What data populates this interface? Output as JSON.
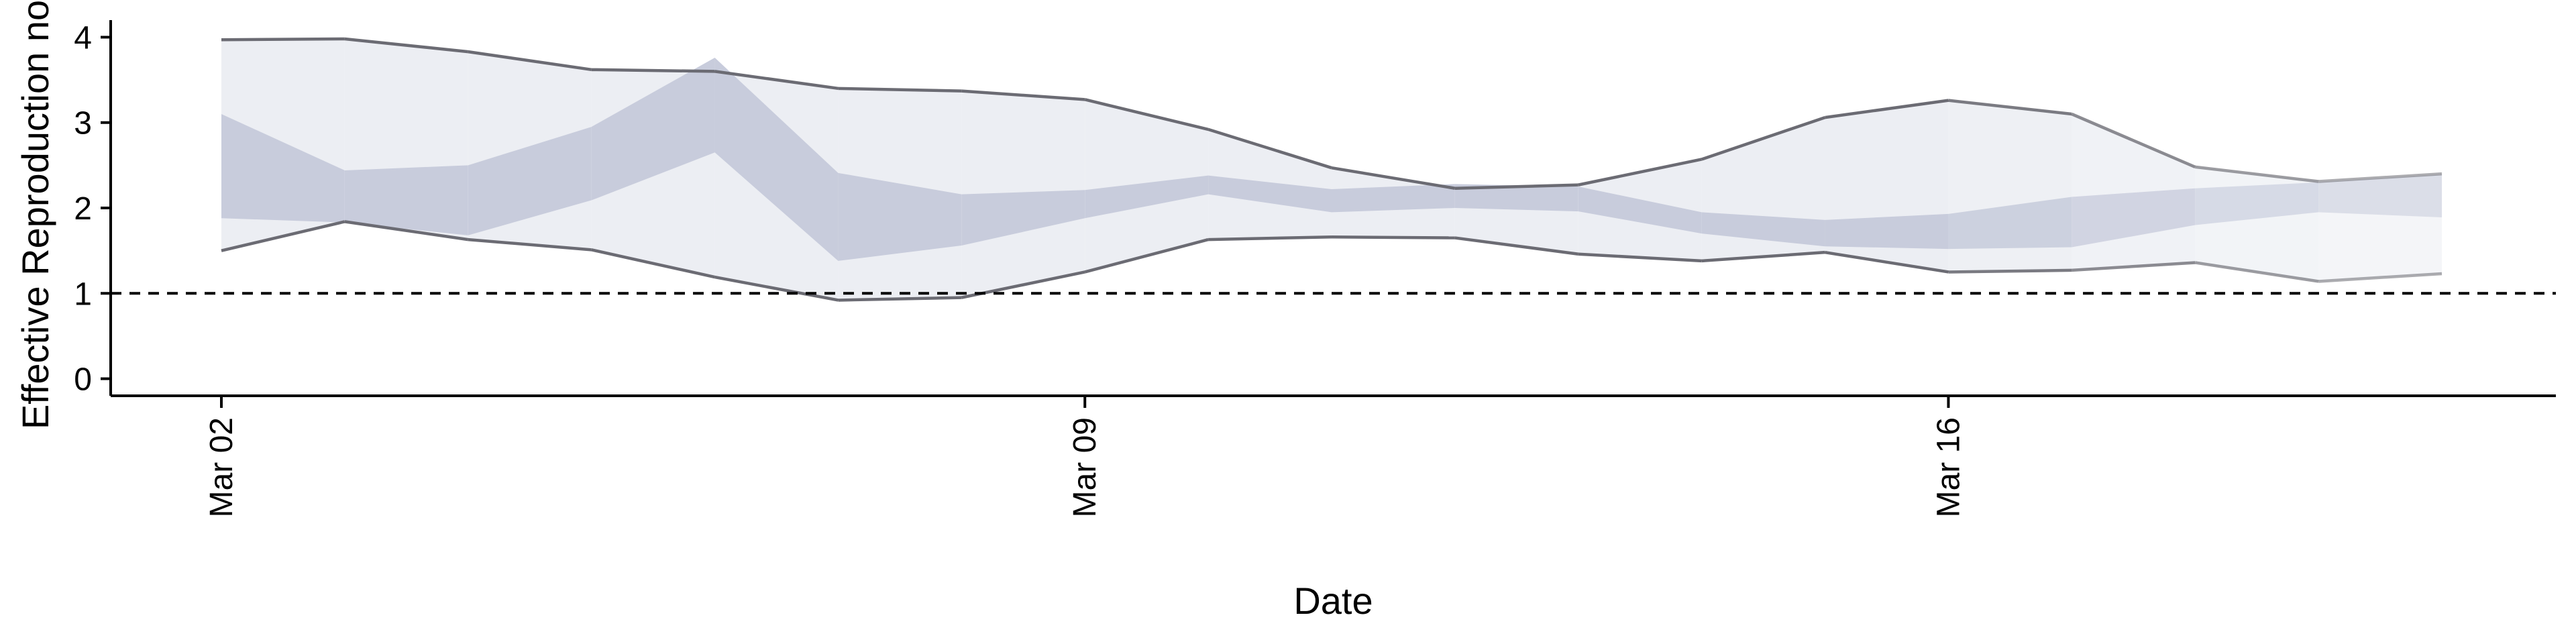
{
  "chart_data": {
    "type": "area",
    "xlabel": "Date",
    "ylabel": "Effective Reproduction no",
    "x": [
      "Mar 02",
      "Mar 03",
      "Mar 04",
      "Mar 05",
      "Mar 06",
      "Mar 07",
      "Mar 08",
      "Mar 09",
      "Mar 10",
      "Mar 11",
      "Mar 12",
      "Mar 13",
      "Mar 14",
      "Mar 15",
      "Mar 16",
      "Mar 17",
      "Mar 18",
      "Mar 19",
      "Mar 20"
    ],
    "x_ticks": [
      "Mar 02",
      "Mar 09",
      "Mar 16"
    ],
    "y_ticks": [
      0,
      1,
      2,
      3,
      4
    ],
    "ylim": [
      -0.2,
      4.2
    ],
    "reference_line": {
      "y": 1,
      "style": "dashed"
    },
    "outer_upper": [
      3.97,
      3.98,
      3.83,
      3.62,
      3.6,
      3.4,
      3.37,
      3.27,
      2.92,
      2.47,
      2.23,
      2.27,
      2.57,
      3.06,
      3.26,
      3.1,
      2.48,
      2.31,
      2.4
    ],
    "outer_lower": [
      1.5,
      1.84,
      1.63,
      1.51,
      1.19,
      0.92,
      0.95,
      1.25,
      1.63,
      1.66,
      1.65,
      1.46,
      1.38,
      1.48,
      1.25,
      1.27,
      1.36,
      1.14,
      1.23
    ],
    "inner_upper": [
      3.1,
      2.44,
      2.5,
      2.95,
      3.76,
      2.41,
      2.16,
      2.21,
      2.38,
      2.22,
      2.28,
      2.25,
      1.95,
      1.86,
      1.93,
      2.13,
      2.23,
      2.3,
      2.39
    ],
    "inner_lower": [
      1.88,
      1.83,
      1.68,
      2.09,
      2.65,
      1.38,
      1.56,
      1.88,
      2.16,
      1.95,
      2.0,
      1.96,
      1.7,
      1.55,
      1.52,
      1.54,
      1.8,
      1.95,
      1.89
    ],
    "grid": false,
    "colors": {
      "outer_band": "#eceef3",
      "inner_band": "#c8ccdc",
      "bound_line": "#6b6b73"
    }
  }
}
